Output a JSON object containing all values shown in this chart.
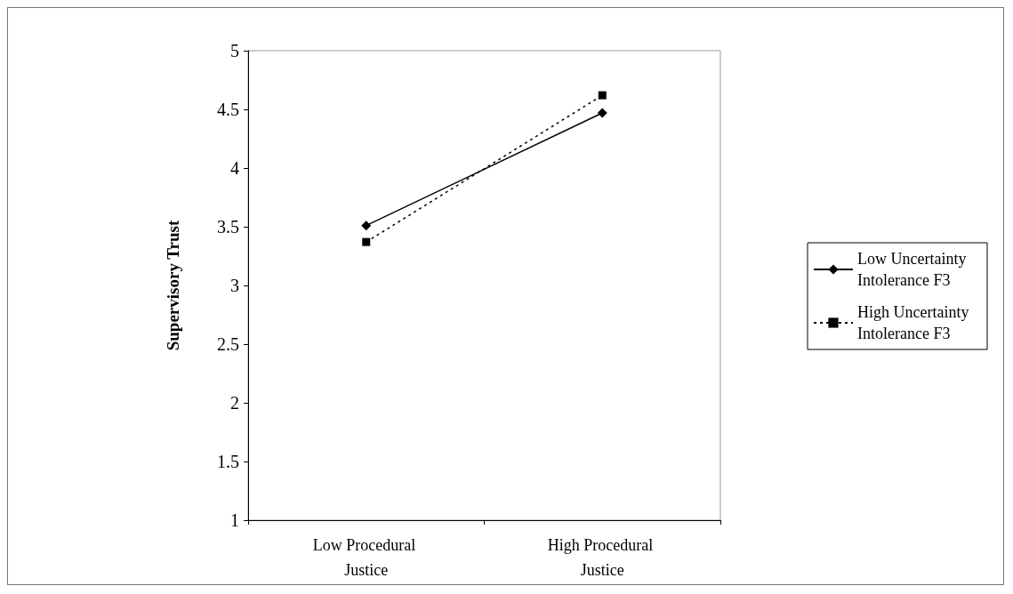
{
  "chart_data": {
    "type": "line",
    "ylabel": "Supervisory Trust",
    "categories": [
      "Low Procedural Justice",
      "High Procedural Justice"
    ],
    "series": [
      {
        "name": "Low Uncertainty Intolerance F3",
        "color": "#000000",
        "values": [
          3.51,
          4.47
        ],
        "marker": "diamond",
        "line_style": "solid"
      },
      {
        "name": "High Uncertainty Intolerance F3",
        "color": "#000000",
        "values": [
          3.37,
          4.62
        ],
        "marker": "square",
        "line_style": "dotted"
      }
    ],
    "ylim": [
      1,
      5
    ],
    "yticks": [
      1,
      1.5,
      2,
      2.5,
      3,
      3.5,
      4,
      4.5,
      5
    ],
    "grid": false,
    "legend": "right"
  }
}
